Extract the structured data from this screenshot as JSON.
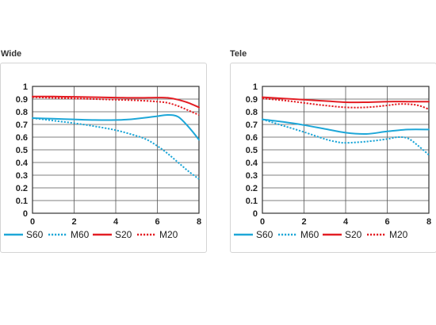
{
  "chart_data": [
    {
      "type": "line",
      "title": "Wide",
      "xlim": [
        0,
        8
      ],
      "ylim": [
        0,
        1
      ],
      "xticks": [
        "0",
        "2",
        "4",
        "6",
        "8"
      ],
      "yticks": [
        "0",
        "0.1",
        "0.2",
        "0.3",
        "0.4",
        "0.5",
        "0.6",
        "0.7",
        "0.8",
        "0.9",
        "1"
      ],
      "grid": true,
      "legend_position": "bottom",
      "series": [
        {
          "name": "S60",
          "color": "#1ea7d8",
          "dash": "solid",
          "x": [
            0,
            1,
            2,
            3,
            4,
            4.5,
            5,
            5.5,
            6,
            6.5,
            7,
            7.5,
            8
          ],
          "y": [
            0.75,
            0.745,
            0.74,
            0.735,
            0.735,
            0.738,
            0.745,
            0.755,
            0.765,
            0.775,
            0.76,
            0.68,
            0.58
          ]
        },
        {
          "name": "M60",
          "color": "#1ea7d8",
          "dash": "dotted",
          "x": [
            0,
            1,
            2,
            3,
            4,
            5,
            5.5,
            6,
            6.5,
            7,
            7.5,
            8
          ],
          "y": [
            0.75,
            0.73,
            0.71,
            0.685,
            0.655,
            0.61,
            0.58,
            0.53,
            0.47,
            0.4,
            0.33,
            0.27
          ]
        },
        {
          "name": "S20",
          "color": "#e31e24",
          "dash": "solid",
          "x": [
            0,
            1,
            2,
            3,
            4,
            5,
            6,
            6.5,
            7,
            7.5,
            8
          ],
          "y": [
            0.92,
            0.92,
            0.918,
            0.915,
            0.912,
            0.91,
            0.912,
            0.91,
            0.895,
            0.87,
            0.835
          ]
        },
        {
          "name": "M20",
          "color": "#e31e24",
          "dash": "dotted",
          "x": [
            0,
            1,
            2,
            3,
            4,
            5,
            6,
            6.5,
            7,
            7.5,
            8
          ],
          "y": [
            0.915,
            0.91,
            0.905,
            0.9,
            0.895,
            0.89,
            0.88,
            0.87,
            0.845,
            0.81,
            0.775
          ]
        }
      ]
    },
    {
      "type": "line",
      "title": "Tele",
      "xlim": [
        0,
        8
      ],
      "ylim": [
        0,
        1
      ],
      "xticks": [
        "0",
        "2",
        "4",
        "6",
        "8"
      ],
      "yticks": [
        "0",
        "0.1",
        "0.2",
        "0.3",
        "0.4",
        "0.5",
        "0.6",
        "0.7",
        "0.8",
        "0.9",
        "1"
      ],
      "grid": true,
      "legend_position": "bottom",
      "series": [
        {
          "name": "S60",
          "color": "#1ea7d8",
          "dash": "solid",
          "x": [
            0,
            1,
            2,
            3,
            4,
            5,
            6,
            7,
            8
          ],
          "y": [
            0.74,
            0.72,
            0.695,
            0.665,
            0.635,
            0.625,
            0.645,
            0.66,
            0.66
          ]
        },
        {
          "name": "M60",
          "color": "#1ea7d8",
          "dash": "dotted",
          "x": [
            0,
            1,
            2,
            3,
            3.5,
            4,
            5,
            6,
            6.5,
            7,
            7.5,
            8
          ],
          "y": [
            0.74,
            0.69,
            0.64,
            0.585,
            0.565,
            0.555,
            0.565,
            0.585,
            0.6,
            0.59,
            0.53,
            0.46
          ]
        },
        {
          "name": "S20",
          "color": "#e31e24",
          "dash": "solid",
          "x": [
            0,
            1,
            2,
            3,
            4,
            5,
            6,
            7,
            8
          ],
          "y": [
            0.915,
            0.905,
            0.895,
            0.885,
            0.875,
            0.875,
            0.88,
            0.88,
            0.88
          ]
        },
        {
          "name": "M20",
          "color": "#e31e24",
          "dash": "dotted",
          "x": [
            0,
            1,
            2,
            3,
            4,
            5,
            6,
            6.5,
            7,
            7.5,
            8
          ],
          "y": [
            0.905,
            0.89,
            0.87,
            0.85,
            0.835,
            0.835,
            0.85,
            0.86,
            0.86,
            0.85,
            0.82
          ]
        }
      ]
    }
  ]
}
